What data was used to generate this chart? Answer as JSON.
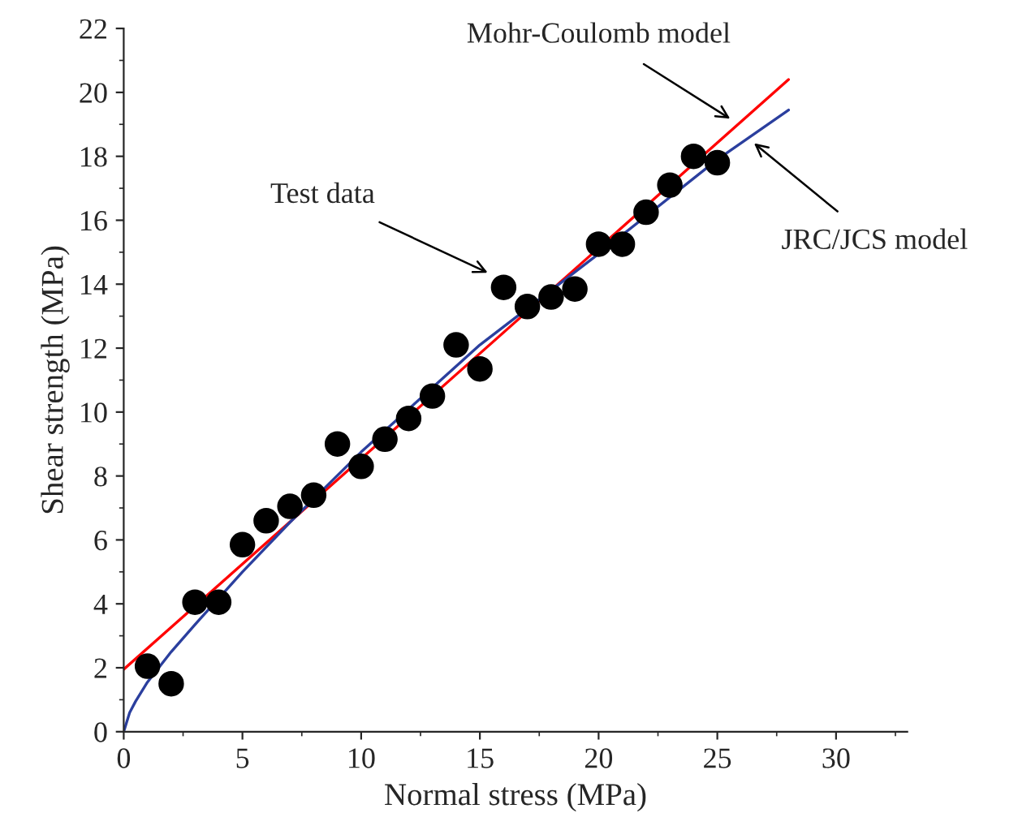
{
  "chart_data": {
    "type": "scatter",
    "xlabel": "Normal stress (MPa)",
    "ylabel": "Shear strength (MPa)",
    "xlim": [
      0,
      33
    ],
    "ylim": [
      0,
      22
    ],
    "xticks": [
      0,
      5,
      10,
      15,
      20,
      25,
      30
    ],
    "yticks": [
      0,
      2,
      4,
      6,
      8,
      10,
      12,
      14,
      16,
      18,
      20,
      22
    ],
    "grid": false,
    "legend": false,
    "series": [
      {
        "marker": "circle",
        "color": "#000000",
        "x": [
          1,
          2,
          3,
          4,
          5,
          6,
          7,
          8,
          9,
          10,
          11,
          12,
          13,
          14,
          15,
          16,
          17,
          18,
          19,
          20,
          21,
          22,
          23,
          24,
          25
        ],
        "values": [
          2.05,
          1.5,
          4.05,
          4.05,
          5.85,
          6.6,
          7.05,
          7.4,
          9.0,
          8.3,
          9.15,
          9.8,
          10.5,
          12.1,
          11.35,
          13.9,
          13.3,
          13.6,
          13.85,
          15.25,
          15.25,
          16.25,
          17.1,
          18.0,
          17.8
        ]
      },
      {
        "type": "line",
        "color": "#ff0000",
        "x": [
          0,
          28
        ],
        "values": [
          1.95,
          20.4
        ]
      },
      {
        "type": "line",
        "color": "#2b3f9e",
        "x": [
          0,
          0.25,
          0.5,
          1,
          2,
          3,
          5,
          7,
          10,
          15,
          20,
          25,
          28
        ],
        "values": [
          0,
          0.6,
          0.95,
          1.55,
          2.5,
          3.35,
          5.0,
          6.55,
          8.75,
          12.1,
          14.95,
          17.9,
          19.45
        ]
      }
    ],
    "annotations": [
      {
        "text": "Test data",
        "x": 15.5,
        "y": 14.3
      },
      {
        "text": "Mohr-Coulomb model",
        "x": 25.7,
        "y": 19.1
      },
      {
        "text": "JRC/JCS model",
        "x": 26.4,
        "y": 18.5
      }
    ]
  }
}
